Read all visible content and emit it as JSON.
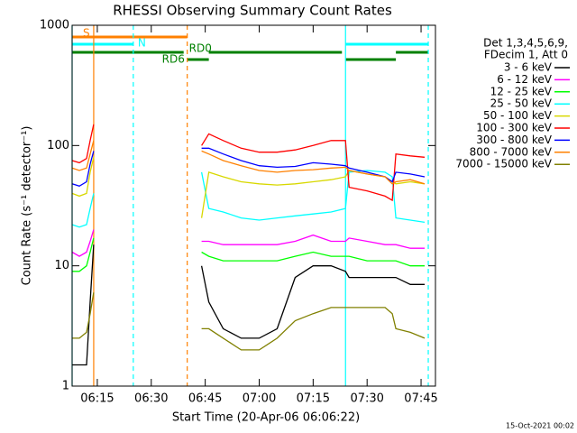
{
  "chart_data": {
    "type": "line",
    "title": "RHESSI Observing Summary Count Rates",
    "x_label": "Start Time (20-Apr-06 06:06:22)",
    "y_label": "Count Rate (s⁻¹ detector⁻¹)",
    "footer": "15-Oct-2021 00:02",
    "legend_header": [
      "Det 1,3,4,5,6,9,",
      "FDecim 1, Att 0"
    ],
    "log_y": true,
    "xlim": [
      "06:08",
      "07:49"
    ],
    "xticks": [
      "06:15",
      "06:30",
      "06:45",
      "07:00",
      "07:15",
      "07:30",
      "07:45"
    ],
    "ylim": [
      1,
      1000
    ],
    "yticks": [
      1,
      10,
      100,
      1000
    ],
    "x": [
      "06:08",
      "06:10",
      "06:12",
      "06:13",
      "06:14",
      "06:40",
      "06:44",
      "06:46",
      "06:50",
      "06:55",
      "07:00",
      "07:05",
      "07:10",
      "07:15",
      "07:20",
      "07:24",
      "07:25",
      "07:30",
      "07:35",
      "07:37",
      "07:38",
      "07:42",
      "07:46"
    ],
    "series": [
      {
        "name": "3 - 6 keV",
        "color": "#000000",
        "values": [
          1.5,
          1.5,
          1.5,
          5,
          15,
          null,
          10,
          5,
          3,
          2.5,
          2.5,
          3,
          8,
          10,
          10,
          9,
          8,
          8,
          8,
          8,
          8,
          7,
          7
        ]
      },
      {
        "name": "6 - 12 keV",
        "color": "#ff00ff",
        "values": [
          13,
          12,
          13,
          16,
          20,
          null,
          16,
          16,
          15,
          15,
          15,
          15,
          16,
          18,
          16,
          16,
          17,
          16,
          15,
          15,
          15,
          14,
          14
        ]
      },
      {
        "name": "12 - 25 keV",
        "color": "#00ff00",
        "values": [
          9,
          9,
          10,
          13,
          17,
          null,
          13,
          12,
          11,
          11,
          11,
          11,
          12,
          13,
          12,
          12,
          12,
          11,
          11,
          11,
          11,
          10,
          10
        ]
      },
      {
        "name": "25 - 50 keV",
        "color": "#00ffff",
        "values": [
          22,
          21,
          22,
          30,
          40,
          null,
          60,
          30,
          28,
          25,
          24,
          25,
          26,
          27,
          28,
          30,
          60,
          62,
          60,
          55,
          25,
          24,
          23
        ]
      },
      {
        "name": "50 - 100 keV",
        "color": "#d8d800",
        "values": [
          40,
          38,
          40,
          60,
          80,
          null,
          25,
          60,
          55,
          50,
          48,
          47,
          48,
          50,
          52,
          55,
          62,
          58,
          55,
          50,
          48,
          50,
          48
        ]
      },
      {
        "name": "100 - 300 keV",
        "color": "#ff0000",
        "values": [
          75,
          72,
          78,
          110,
          150,
          null,
          100,
          125,
          110,
          95,
          88,
          88,
          92,
          100,
          110,
          110,
          45,
          42,
          38,
          35,
          85,
          82,
          80
        ]
      },
      {
        "name": "300 - 800 keV",
        "color": "#0000ff",
        "values": [
          48,
          46,
          50,
          70,
          90,
          null,
          95,
          95,
          85,
          75,
          68,
          66,
          67,
          72,
          70,
          68,
          65,
          60,
          55,
          50,
          60,
          58,
          55
        ]
      },
      {
        "name": "800 - 7000 keV",
        "color": "#ff8000",
        "values": [
          65,
          62,
          65,
          85,
          110,
          null,
          90,
          85,
          75,
          68,
          62,
          60,
          62,
          63,
          65,
          66,
          62,
          58,
          55,
          48,
          50,
          52,
          48
        ]
      },
      {
        "name": "7000 - 15000 keV",
        "color": "#808000",
        "values": [
          2.5,
          2.5,
          2.8,
          4,
          6,
          null,
          3,
          3,
          2.5,
          2,
          2,
          2.5,
          3.5,
          4,
          4.5,
          4.5,
          4.5,
          4.5,
          4.5,
          4,
          3,
          2.8,
          2.5
        ]
      }
    ],
    "markers": [
      {
        "time": "06:08",
        "color": "#00ffff",
        "dashed": false
      },
      {
        "time": "06:14",
        "color": "#ff8000",
        "dashed": false
      },
      {
        "time": "06:25",
        "color": "#00ffff",
        "dashed": true
      },
      {
        "time": "06:40",
        "color": "#ff8000",
        "dashed": true
      },
      {
        "time": "07:24",
        "color": "#00ffff",
        "dashed": false
      },
      {
        "time": "07:47",
        "color": "#00ffff",
        "dashed": true
      }
    ],
    "flags": [
      {
        "label": "S",
        "color": "#ff8000",
        "spans": [
          [
            "06:08",
            "06:40"
          ]
        ]
      },
      {
        "label": "N",
        "color": "#00ffff",
        "spans": [
          [
            "06:08",
            "06:25"
          ],
          [
            "07:24",
            "07:47"
          ]
        ]
      },
      {
        "label": "RD0",
        "color": "#008000",
        "spans": [
          [
            "06:08",
            "06:39"
          ],
          [
            "06:46",
            "07:23"
          ],
          [
            "07:38",
            "07:47"
          ]
        ]
      },
      {
        "label": "RD6",
        "color": "#008000",
        "spans": [
          [
            "06:40",
            "06:46"
          ],
          [
            "07:24",
            "07:38"
          ]
        ]
      }
    ]
  }
}
